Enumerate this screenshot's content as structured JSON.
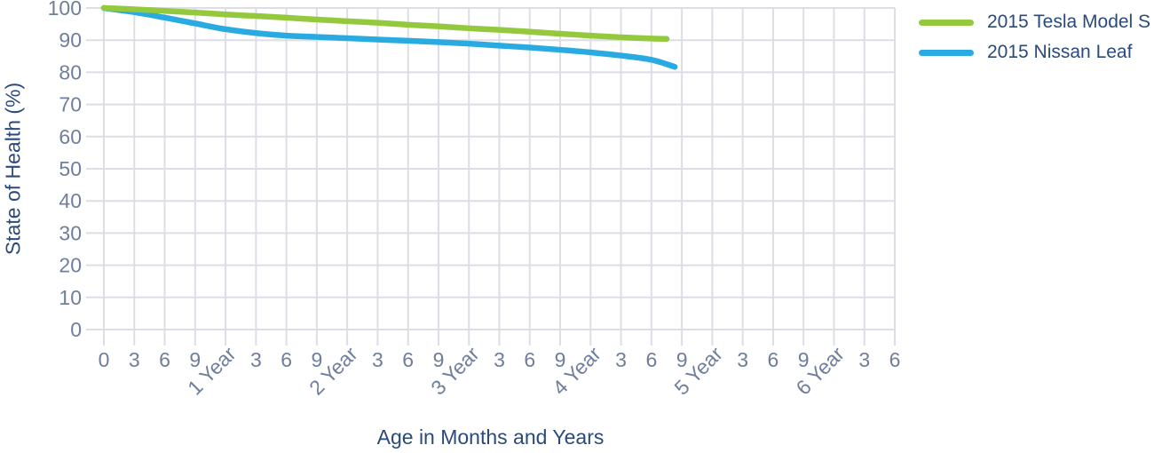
{
  "chart_data": {
    "type": "line",
    "title": "",
    "xlabel": "Age in Months and Years",
    "ylabel": "State of Health (%)",
    "ylim": [
      0,
      100
    ],
    "y_ticks": [
      0,
      10,
      20,
      30,
      40,
      50,
      60,
      70,
      80,
      90,
      100
    ],
    "xlim_months": [
      0,
      78
    ],
    "grid": true,
    "legend_position": "top-right",
    "x_ticks": [
      {
        "month": 0,
        "label": "0"
      },
      {
        "month": 3,
        "label": "3"
      },
      {
        "month": 6,
        "label": "6"
      },
      {
        "month": 9,
        "label": "9"
      },
      {
        "month": 12,
        "label": "1 Year",
        "rotated": true
      },
      {
        "month": 15,
        "label": "3"
      },
      {
        "month": 18,
        "label": "6"
      },
      {
        "month": 21,
        "label": "9"
      },
      {
        "month": 24,
        "label": "2 Year",
        "rotated": true
      },
      {
        "month": 27,
        "label": "3"
      },
      {
        "month": 30,
        "label": "6"
      },
      {
        "month": 33,
        "label": "9"
      },
      {
        "month": 36,
        "label": "3 Year",
        "rotated": true
      },
      {
        "month": 39,
        "label": "3"
      },
      {
        "month": 42,
        "label": "6"
      },
      {
        "month": 45,
        "label": "9"
      },
      {
        "month": 48,
        "label": "4 Year",
        "rotated": true
      },
      {
        "month": 51,
        "label": "3"
      },
      {
        "month": 54,
        "label": "6"
      },
      {
        "month": 57,
        "label": "9"
      },
      {
        "month": 60,
        "label": "5 Year",
        "rotated": true
      },
      {
        "month": 63,
        "label": "3"
      },
      {
        "month": 66,
        "label": "6"
      },
      {
        "month": 69,
        "label": "9"
      },
      {
        "month": 72,
        "label": "6 Year",
        "rotated": true
      },
      {
        "month": 75,
        "label": "3"
      },
      {
        "month": 78,
        "label": "6"
      }
    ],
    "series": [
      {
        "name": "2015 Tesla Model S",
        "color": "#94C83D",
        "x_months": [
          0,
          3,
          6,
          9,
          12,
          15,
          18,
          21,
          24,
          27,
          30,
          33,
          36,
          39,
          42,
          45,
          48,
          51,
          54,
          55.5
        ],
        "y_soh": [
          100,
          99.6,
          99.1,
          98.6,
          98.0,
          97.5,
          97.0,
          96.4,
          95.9,
          95.4,
          94.8,
          94.3,
          93.7,
          93.2,
          92.6,
          92.0,
          91.4,
          90.9,
          90.5,
          90.4
        ]
      },
      {
        "name": "2015 Nissan Leaf",
        "color": "#29ABE2",
        "x_months": [
          0,
          3,
          6,
          9,
          12,
          15,
          18,
          21,
          24,
          27,
          30,
          33,
          36,
          39,
          42,
          45,
          48,
          51,
          54,
          56.3
        ],
        "y_soh": [
          100,
          98.7,
          97.0,
          95.2,
          93.4,
          92.2,
          91.4,
          91.0,
          90.6,
          90.2,
          89.8,
          89.4,
          88.9,
          88.3,
          87.7,
          87.0,
          86.2,
          85.2,
          83.9,
          81.7
        ]
      }
    ]
  },
  "styles": {
    "background": "#FFFFFF",
    "grid_color": "#DCDEE6",
    "tick_label_color": "#6F7E9C",
    "axis_title_color": "#2A4A7C",
    "tesla_green": "#94C83D",
    "leaf_blue": "#29ABE2"
  }
}
